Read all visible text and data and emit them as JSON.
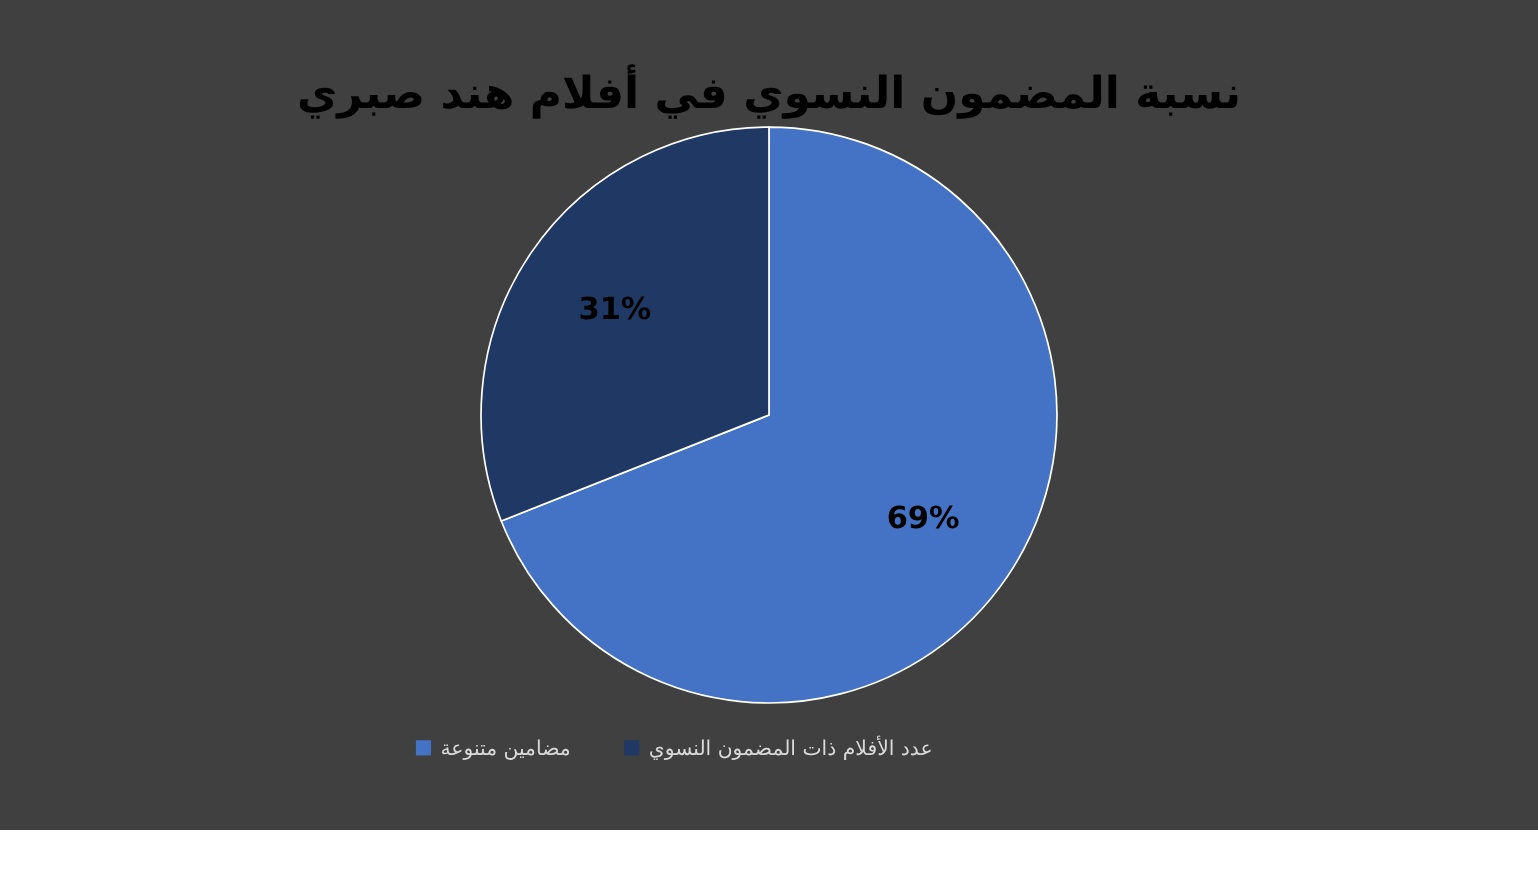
{
  "chart_data": {
    "type": "pie",
    "title": "نسبة المضمون النسوي في أفلام هند صبري",
    "categories": [
      "مضامين متنوعة",
      "عدد الأفلام ذات المضمون النسوي"
    ],
    "values": [
      69,
      31
    ],
    "colors": [
      "#4472c4",
      "#203864"
    ],
    "value_labels": [
      "69%",
      "31%"
    ],
    "legend": "bottom"
  }
}
